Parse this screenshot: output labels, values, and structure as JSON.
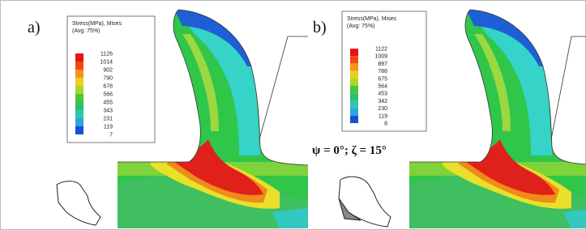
{
  "panels": [
    {
      "label": "a)",
      "legend": {
        "title": "Stress(MPa), Mises",
        "subtitle": "(Avg: 75%)",
        "values": [
          "1126",
          "1014",
          "902",
          "790",
          "678",
          "566",
          "455",
          "343",
          "231",
          "119",
          "7"
        ]
      }
    },
    {
      "label": "b)",
      "legend": {
        "title": "Stress(MPa), Mises",
        "subtitle": "(Avg: 75%)",
        "values": [
          "1122",
          "1009",
          "897",
          "786",
          "675",
          "564",
          "453",
          "342",
          "230",
          "119",
          "8"
        ]
      },
      "annotation": "ψ = 0°; ζ = 15°"
    }
  ]
}
